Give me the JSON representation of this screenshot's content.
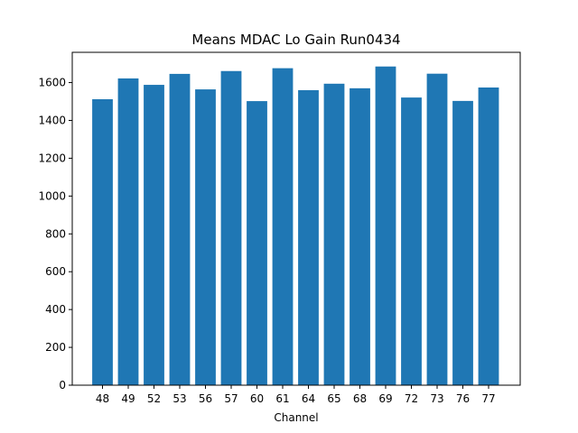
{
  "chart_data": {
    "type": "bar",
    "title": "Means MDAC Lo Gain Run0434",
    "xlabel": "Channel",
    "ylabel": "",
    "categories": [
      "48",
      "49",
      "52",
      "53",
      "56",
      "57",
      "60",
      "61",
      "64",
      "65",
      "68",
      "69",
      "72",
      "73",
      "76",
      "77"
    ],
    "values": [
      1512,
      1622,
      1588,
      1646,
      1564,
      1661,
      1502,
      1676,
      1560,
      1594,
      1570,
      1685,
      1521,
      1647,
      1503,
      1574
    ],
    "ylim": [
      0,
      1760
    ],
    "yticks": [
      0,
      200,
      400,
      600,
      800,
      1000,
      1200,
      1400,
      1600
    ],
    "bar_color": "#1f77b4",
    "grid": false,
    "legend": "none"
  }
}
